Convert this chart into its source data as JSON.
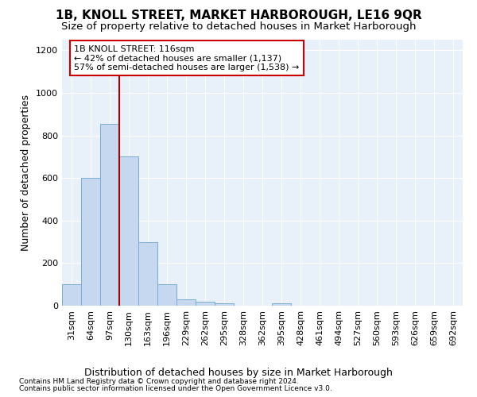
{
  "title": "1B, KNOLL STREET, MARKET HARBOROUGH, LE16 9QR",
  "subtitle": "Size of property relative to detached houses in Market Harborough",
  "xlabel": "Distribution of detached houses by size in Market Harborough",
  "ylabel": "Number of detached properties",
  "bar_color": "#c5d8f0",
  "bar_edge_color": "#7aadd4",
  "background_color": "#e8f0fa",
  "grid_color": "#ffffff",
  "categories": [
    "31sqm",
    "64sqm",
    "97sqm",
    "130sqm",
    "163sqm",
    "196sqm",
    "229sqm",
    "262sqm",
    "295sqm",
    "328sqm",
    "362sqm",
    "395sqm",
    "428sqm",
    "461sqm",
    "494sqm",
    "527sqm",
    "560sqm",
    "593sqm",
    "626sqm",
    "659sqm",
    "692sqm"
  ],
  "values": [
    100,
    600,
    855,
    700,
    300,
    100,
    30,
    20,
    10,
    0,
    0,
    10,
    0,
    0,
    0,
    0,
    0,
    0,
    0,
    0,
    0
  ],
  "ylim": [
    0,
    1250
  ],
  "yticks": [
    0,
    200,
    400,
    600,
    800,
    1000,
    1200
  ],
  "property_label": "1B KNOLL STREET: 116sqm",
  "annotation_line1": "← 42% of detached houses are smaller (1,137)",
  "annotation_line2": "57% of semi-detached houses are larger (1,538) →",
  "vline_x": 2.5,
  "footnote1": "Contains HM Land Registry data © Crown copyright and database right 2024.",
  "footnote2": "Contains public sector information licensed under the Open Government Licence v3.0.",
  "annotation_box_color": "#cc0000",
  "vline_color": "#aa0000",
  "title_fontsize": 11,
  "subtitle_fontsize": 9.5,
  "axis_label_fontsize": 9,
  "tick_fontsize": 8,
  "annotation_fontsize": 8,
  "footnote_fontsize": 6.5
}
